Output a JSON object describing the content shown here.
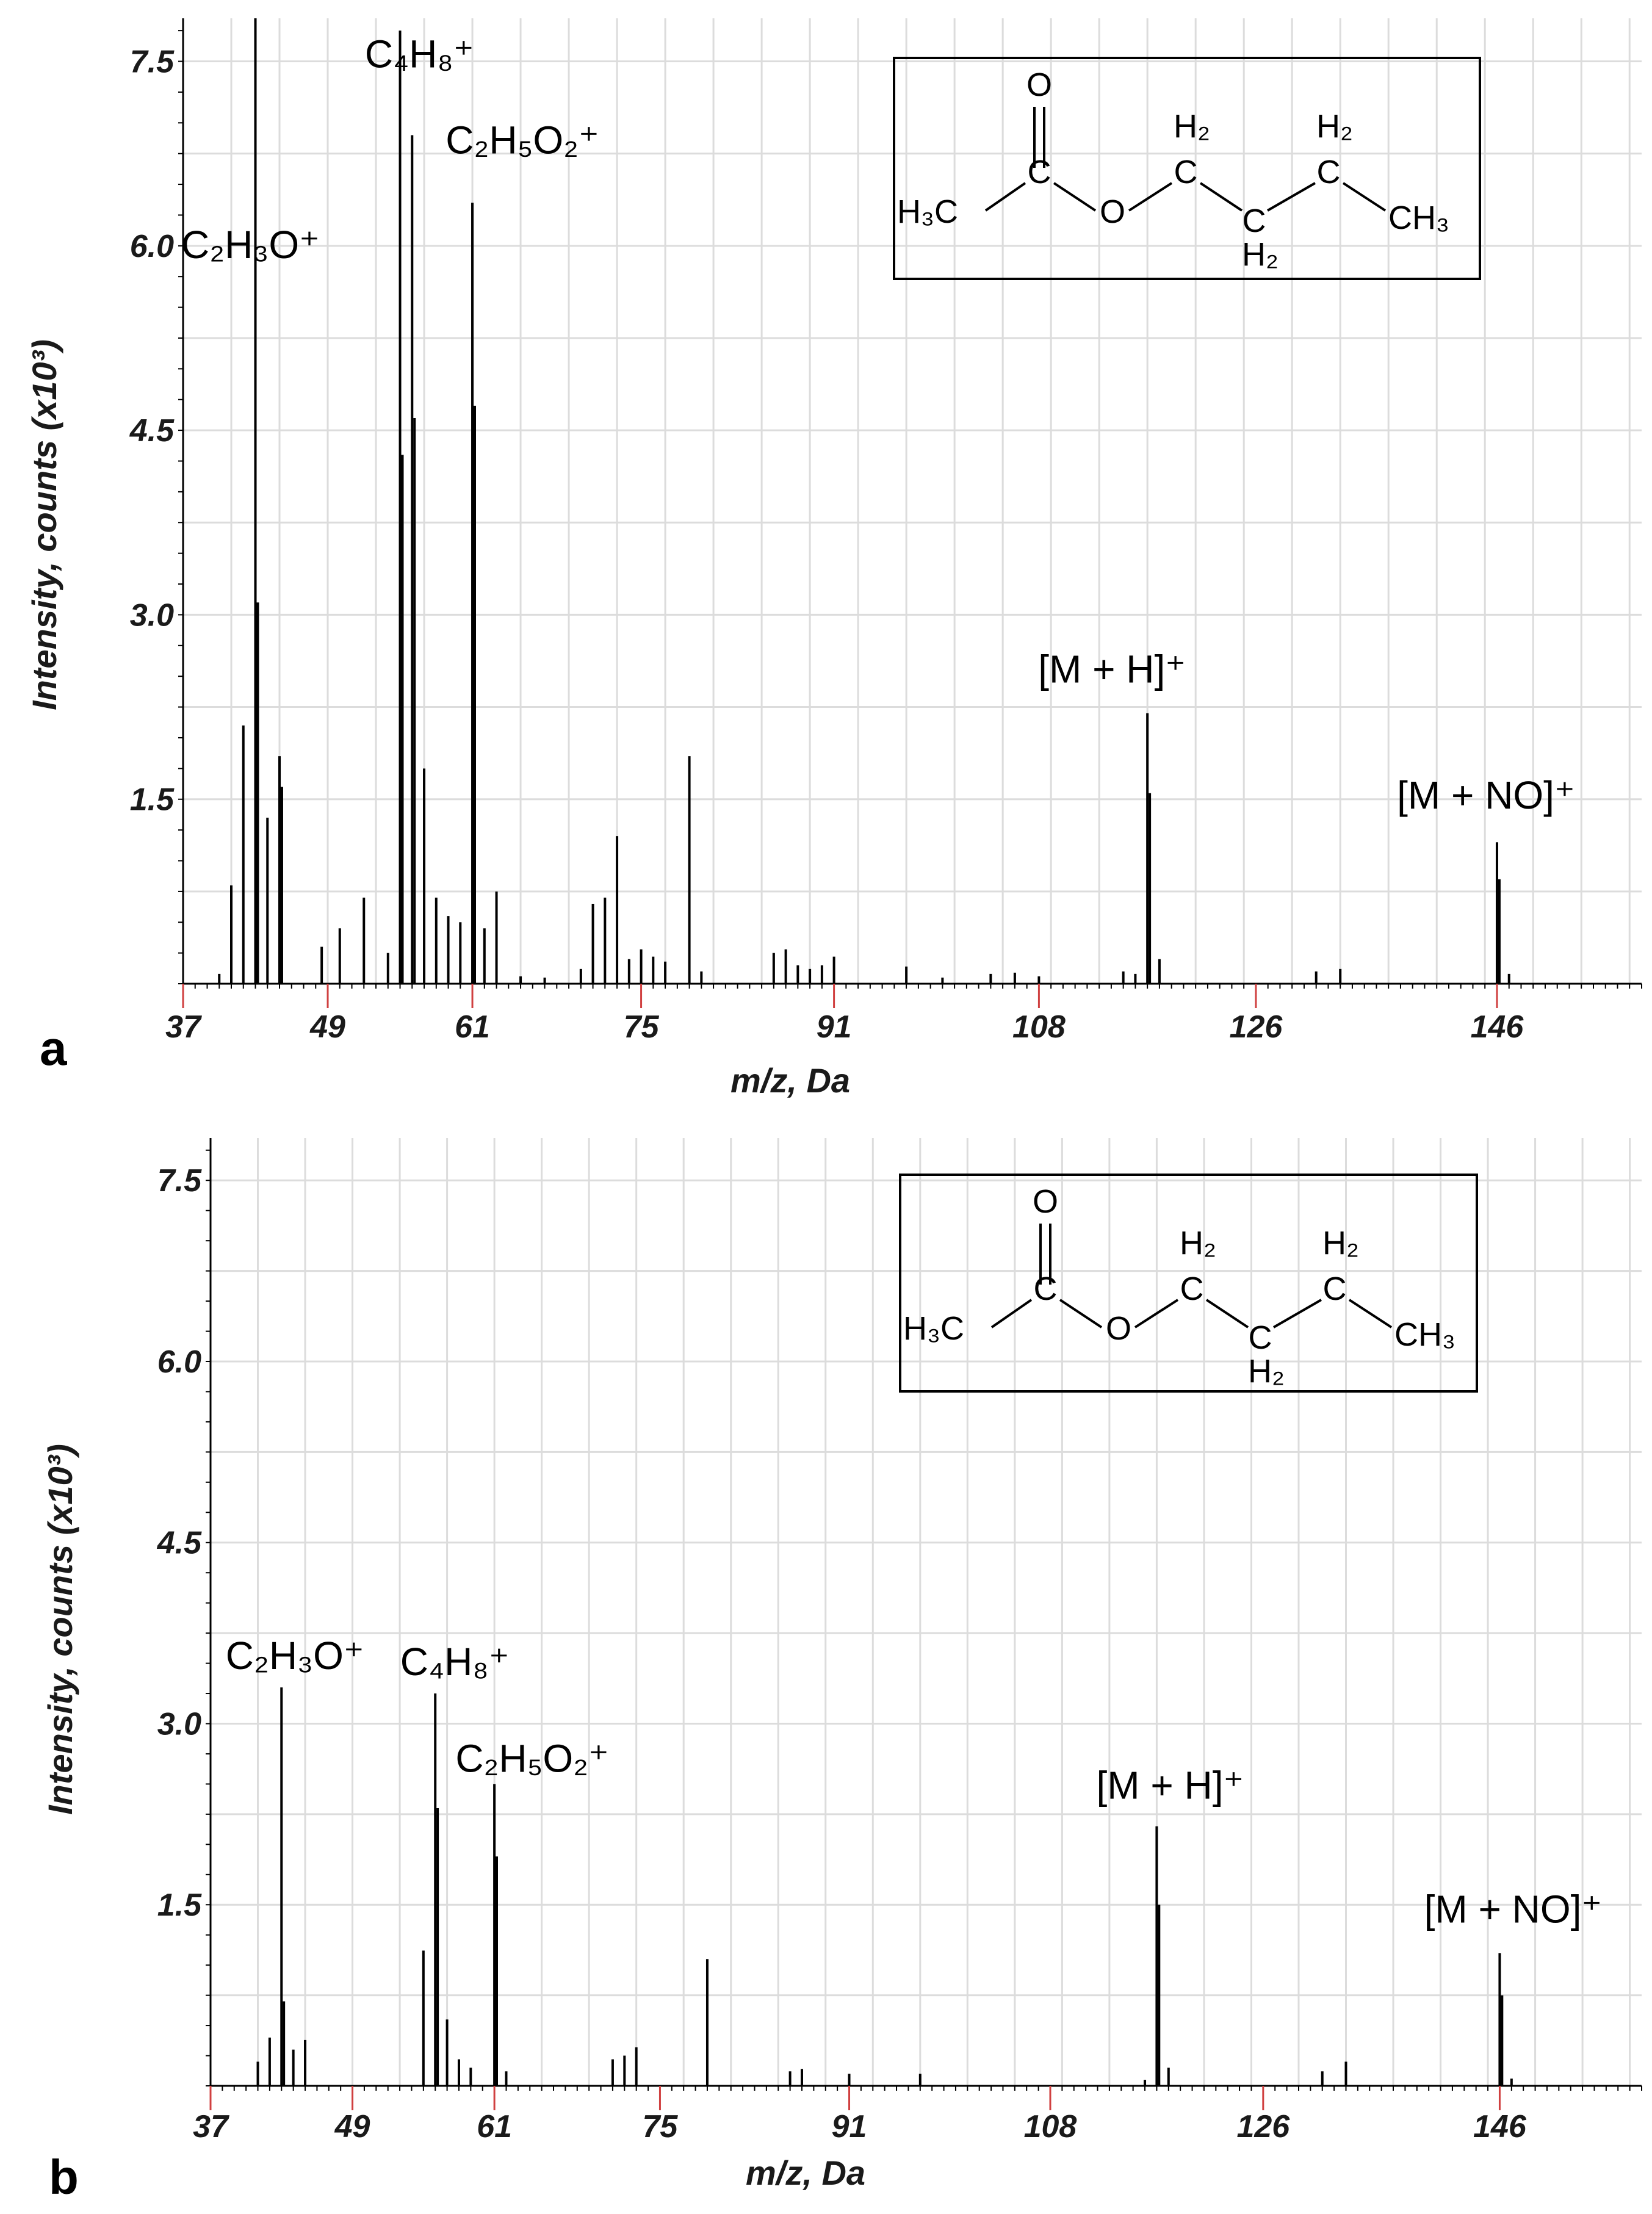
{
  "chart_data": [
    {
      "type": "bar",
      "panel": "a",
      "xlabel": "m/z, Da",
      "ylabel": "Intensity, counts (x10³)",
      "xlim": [
        37,
        158
      ],
      "ylim": [
        0,
        7.85
      ],
      "x_ticks": [
        37,
        49,
        61,
        75,
        91,
        108,
        126,
        146
      ],
      "y_ticks": [
        1.5,
        3.0,
        4.5,
        6.0,
        7.5
      ],
      "y_tick_labels": [
        "1.5",
        "3.0",
        "4.5",
        "6.0",
        "7.5"
      ],
      "grid": true,
      "peaks": [
        {
          "x": 40.0,
          "y": 0.08
        },
        {
          "x": 41.0,
          "y": 0.8
        },
        {
          "x": 42.0,
          "y": 2.1
        },
        {
          "x": 43.0,
          "y": 7.85
        },
        {
          "x": 43.2,
          "y": 3.1
        },
        {
          "x": 44.0,
          "y": 1.35
        },
        {
          "x": 45.0,
          "y": 1.85
        },
        {
          "x": 45.2,
          "y": 1.6
        },
        {
          "x": 48.5,
          "y": 0.3
        },
        {
          "x": 50.0,
          "y": 0.45
        },
        {
          "x": 52.0,
          "y": 0.7
        },
        {
          "x": 54.0,
          "y": 0.25
        },
        {
          "x": 55.0,
          "y": 7.75
        },
        {
          "x": 55.2,
          "y": 4.3
        },
        {
          "x": 56.0,
          "y": 6.9
        },
        {
          "x": 56.2,
          "y": 4.6
        },
        {
          "x": 57.0,
          "y": 1.75
        },
        {
          "x": 58.0,
          "y": 0.7
        },
        {
          "x": 59.0,
          "y": 0.55
        },
        {
          "x": 60.0,
          "y": 0.5
        },
        {
          "x": 61.0,
          "y": 6.35
        },
        {
          "x": 61.2,
          "y": 4.7
        },
        {
          "x": 62.0,
          "y": 0.45
        },
        {
          "x": 63.0,
          "y": 0.75
        },
        {
          "x": 65.0,
          "y": 0.06
        },
        {
          "x": 67.0,
          "y": 0.05
        },
        {
          "x": 70.0,
          "y": 0.12
        },
        {
          "x": 71.0,
          "y": 0.65
        },
        {
          "x": 72.0,
          "y": 0.7
        },
        {
          "x": 73.0,
          "y": 1.2
        },
        {
          "x": 74.0,
          "y": 0.2
        },
        {
          "x": 75.0,
          "y": 0.28
        },
        {
          "x": 76.0,
          "y": 0.22
        },
        {
          "x": 77.0,
          "y": 0.18
        },
        {
          "x": 79.0,
          "y": 1.85
        },
        {
          "x": 80.0,
          "y": 0.1
        },
        {
          "x": 86.0,
          "y": 0.25
        },
        {
          "x": 87.0,
          "y": 0.28
        },
        {
          "x": 88.0,
          "y": 0.15
        },
        {
          "x": 89.0,
          "y": 0.12
        },
        {
          "x": 90.0,
          "y": 0.15
        },
        {
          "x": 91.0,
          "y": 0.22
        },
        {
          "x": 97.0,
          "y": 0.14
        },
        {
          "x": 100.0,
          "y": 0.05
        },
        {
          "x": 104.0,
          "y": 0.08
        },
        {
          "x": 106.0,
          "y": 0.09
        },
        {
          "x": 108.0,
          "y": 0.06
        },
        {
          "x": 115.0,
          "y": 0.1
        },
        {
          "x": 116.0,
          "y": 0.08
        },
        {
          "x": 117.0,
          "y": 2.2
        },
        {
          "x": 117.2,
          "y": 1.55
        },
        {
          "x": 118.0,
          "y": 0.2
        },
        {
          "x": 131.0,
          "y": 0.1
        },
        {
          "x": 133.0,
          "y": 0.12
        },
        {
          "x": 146.0,
          "y": 1.15
        },
        {
          "x": 146.2,
          "y": 0.85
        },
        {
          "x": 147.0,
          "y": 0.08
        }
      ],
      "annotations": [
        {
          "text": "C₂H₃O⁺",
          "x": 43.1
        },
        {
          "text": "C₄H₈⁺",
          "x": 56.1
        },
        {
          "text": "C₂H₅O₂⁺",
          "x": 61.1
        },
        {
          "text": "[M + H]⁺",
          "x": 117.1
        },
        {
          "text": "[M + NO]⁺",
          "x": 146.1
        }
      ]
    },
    {
      "type": "bar",
      "panel": "b",
      "xlabel": "m/z, Da",
      "ylabel": "Intensity, counts (x10³)",
      "xlim": [
        37,
        158
      ],
      "ylim": [
        0,
        7.85
      ],
      "x_ticks": [
        37,
        49,
        61,
        75,
        91,
        108,
        126,
        146
      ],
      "y_ticks": [
        1.5,
        3.0,
        4.5,
        6.0,
        7.5
      ],
      "y_tick_labels": [
        "1.5",
        "3.0",
        "4.5",
        "6.0",
        "7.5"
      ],
      "grid": true,
      "peaks": [
        {
          "x": 41.0,
          "y": 0.2
        },
        {
          "x": 42.0,
          "y": 0.4
        },
        {
          "x": 43.0,
          "y": 3.3
        },
        {
          "x": 43.2,
          "y": 0.7
        },
        {
          "x": 44.0,
          "y": 0.3
        },
        {
          "x": 45.0,
          "y": 0.38
        },
        {
          "x": 55.0,
          "y": 1.12
        },
        {
          "x": 56.0,
          "y": 3.25
        },
        {
          "x": 56.2,
          "y": 2.3
        },
        {
          "x": 57.0,
          "y": 0.55
        },
        {
          "x": 58.0,
          "y": 0.22
        },
        {
          "x": 59.0,
          "y": 0.15
        },
        {
          "x": 61.0,
          "y": 2.5
        },
        {
          "x": 61.2,
          "y": 1.9
        },
        {
          "x": 62.0,
          "y": 0.12
        },
        {
          "x": 71.0,
          "y": 0.22
        },
        {
          "x": 72.0,
          "y": 0.25
        },
        {
          "x": 73.0,
          "y": 0.32
        },
        {
          "x": 79.0,
          "y": 1.05
        },
        {
          "x": 86.0,
          "y": 0.12
        },
        {
          "x": 87.0,
          "y": 0.14
        },
        {
          "x": 91.0,
          "y": 0.1
        },
        {
          "x": 97.0,
          "y": 0.1
        },
        {
          "x": 116.0,
          "y": 0.05
        },
        {
          "x": 117.0,
          "y": 2.15
        },
        {
          "x": 117.2,
          "y": 1.5
        },
        {
          "x": 118.0,
          "y": 0.15
        },
        {
          "x": 131.0,
          "y": 0.12
        },
        {
          "x": 133.0,
          "y": 0.2
        },
        {
          "x": 146.0,
          "y": 1.1
        },
        {
          "x": 146.2,
          "y": 0.75
        },
        {
          "x": 147.0,
          "y": 0.06
        }
      ],
      "annotations": [
        {
          "text": "C₂H₃O⁺",
          "x": 43.1
        },
        {
          "text": "C₄H₈⁺",
          "x": 56.1
        },
        {
          "text": "C₂H₅O₂⁺",
          "x": 61.1
        },
        {
          "text": "[M + H]⁺",
          "x": 117.1
        },
        {
          "text": "[M + NO]⁺",
          "x": 146.1
        }
      ]
    }
  ],
  "structure": {
    "atoms": [
      "O",
      "C",
      "H₃C",
      "O",
      "C",
      "H₂",
      "C",
      "H₂",
      "C",
      "H₂",
      "CH₃"
    ]
  }
}
